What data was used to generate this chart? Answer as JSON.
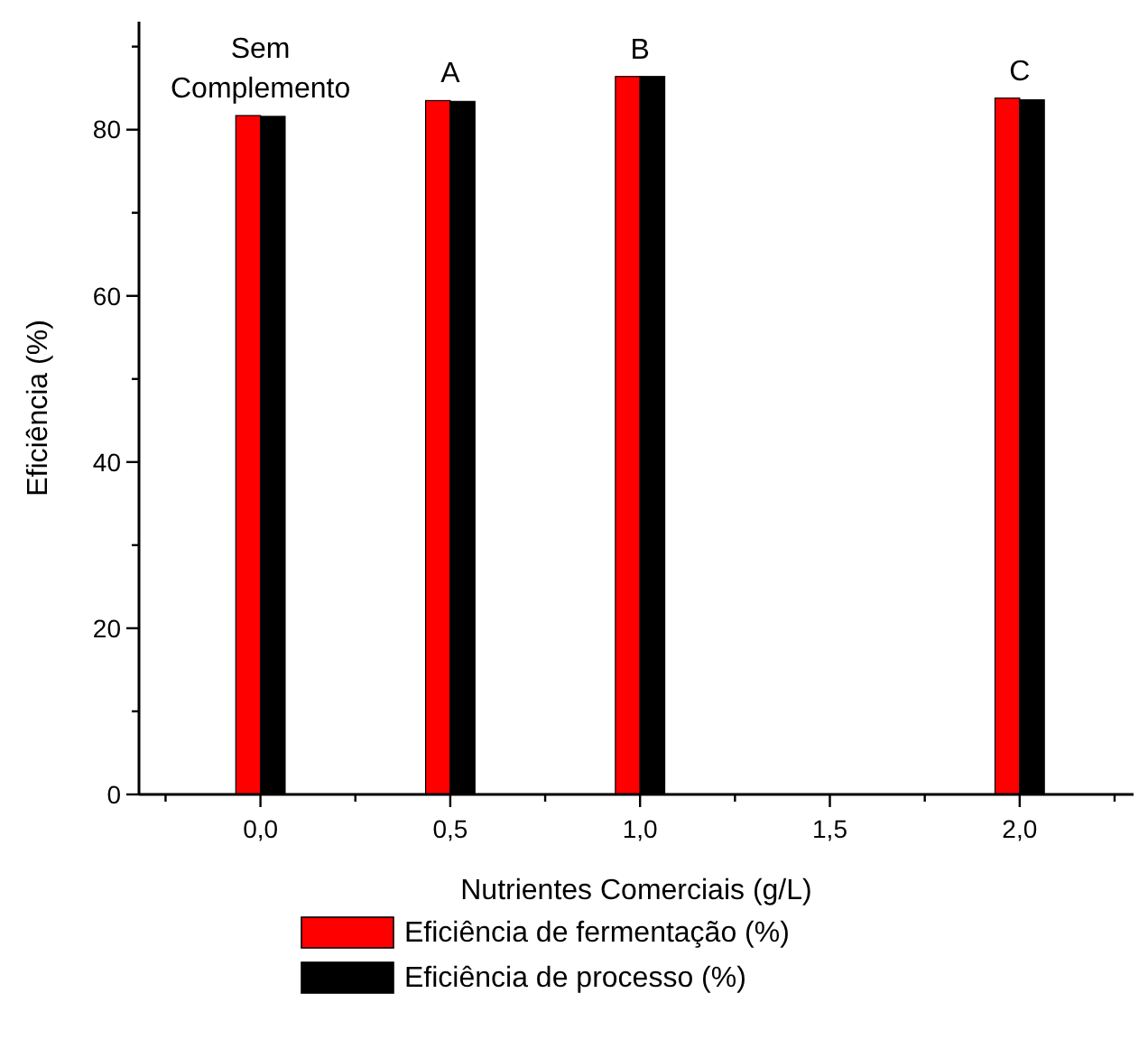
{
  "chart_data": {
    "type": "bar",
    "xlabel": "Nutrientes Comerciais (g/L)",
    "ylabel": "Eficiência (%)",
    "x": [
      0,
      0.5,
      1,
      2
    ],
    "series": [
      {
        "name": "Eficiência de fermentação (%)",
        "color": "#ff0000",
        "values": [
          81.7,
          83.5,
          86.4,
          83.8
        ]
      },
      {
        "name": "Eficiência de processo (%)",
        "color": "#000000",
        "values": [
          81.6,
          83.4,
          86.4,
          83.6
        ]
      }
    ],
    "xlim": [
      -0.32,
      2.3
    ],
    "xticks": [
      {
        "value": -0.25,
        "label": null
      },
      {
        "value": 0,
        "label": "0,0"
      },
      {
        "value": 0.25,
        "label": null
      },
      {
        "value": 0.5,
        "label": "0,5"
      },
      {
        "value": 0.75,
        "label": null
      },
      {
        "value": 1,
        "label": "1,0"
      },
      {
        "value": 1.25,
        "label": null
      },
      {
        "value": 1.5,
        "label": "1,5"
      },
      {
        "value": 1.75,
        "label": null
      },
      {
        "value": 2,
        "label": "2,0"
      },
      {
        "value": 2.25,
        "label": null
      }
    ],
    "ylim": [
      0,
      93
    ],
    "yticks": [
      0,
      {
        "value": 10,
        "label": null
      },
      20,
      {
        "value": 30,
        "label": null
      },
      40,
      {
        "value": 50,
        "label": null
      },
      60,
      {
        "value": 70,
        "label": null
      },
      80,
      {
        "value": 90,
        "label": null
      }
    ],
    "annotations": [
      {
        "text": "Sem Complemento",
        "x": 0,
        "y": 81.7
      },
      {
        "text": "A",
        "x": 0.5,
        "y": 83.5
      },
      {
        "text": "B",
        "x": 1,
        "y": 86.4
      },
      {
        "text": "C",
        "x": 2,
        "y": 83.8
      }
    ],
    "legend": "bottom",
    "grid": false
  }
}
